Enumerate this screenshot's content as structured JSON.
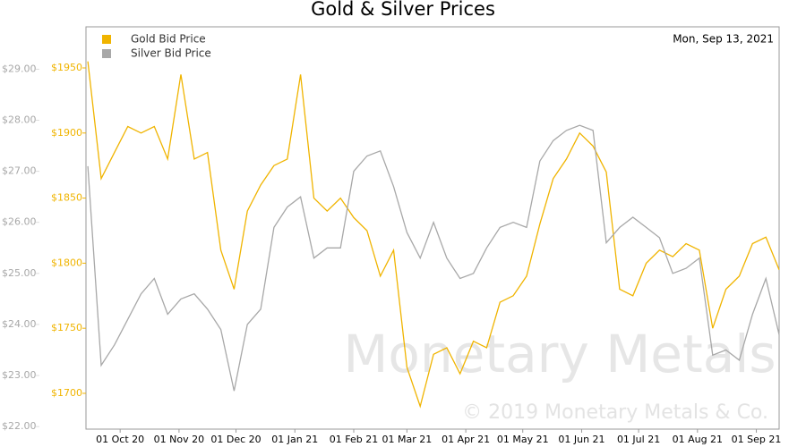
{
  "chart_data": {
    "type": "line",
    "title": "Gold & Silver Prices",
    "date_label": "Mon, Sep 13, 2021",
    "watermark": "Monetary Metals",
    "copyright": "© 2019 Monetary Metals & Co.",
    "legend": "top-left",
    "x": [
      "2020-09-14",
      "2020-09-21",
      "2020-09-28",
      "2020-10-05",
      "2020-10-12",
      "2020-10-19",
      "2020-10-26",
      "2020-11-02",
      "2020-11-09",
      "2020-11-16",
      "2020-11-23",
      "2020-11-30",
      "2020-12-07",
      "2020-12-14",
      "2020-12-21",
      "2020-12-28",
      "2021-01-04",
      "2021-01-11",
      "2021-01-18",
      "2021-01-25",
      "2021-02-01",
      "2021-02-08",
      "2021-02-15",
      "2021-02-22",
      "2021-03-01",
      "2021-03-08",
      "2021-03-15",
      "2021-03-22",
      "2021-03-29",
      "2021-04-05",
      "2021-04-12",
      "2021-04-19",
      "2021-04-26",
      "2021-05-03",
      "2021-05-10",
      "2021-05-17",
      "2021-05-24",
      "2021-05-31",
      "2021-06-07",
      "2021-06-14",
      "2021-06-21",
      "2021-06-28",
      "2021-07-05",
      "2021-07-12",
      "2021-07-19",
      "2021-07-26",
      "2021-08-02",
      "2021-08-09",
      "2021-08-16",
      "2021-08-23",
      "2021-08-30",
      "2021-09-06",
      "2021-09-13"
    ],
    "series": [
      {
        "name": "Gold Bid Price",
        "color": "#f0b400",
        "axis": "y2",
        "values": [
          1955,
          1865,
          1885,
          1905,
          1900,
          1905,
          1880,
          1945,
          1880,
          1885,
          1810,
          1780,
          1840,
          1860,
          1875,
          1880,
          1945,
          1850,
          1840,
          1850,
          1835,
          1825,
          1790,
          1810,
          1720,
          1690,
          1730,
          1735,
          1715,
          1740,
          1735,
          1770,
          1775,
          1790,
          1830,
          1865,
          1880,
          1900,
          1890,
          1870,
          1780,
          1775,
          1800,
          1810,
          1805,
          1815,
          1810,
          1750,
          1780,
          1790,
          1815,
          1820,
          1795
        ]
      },
      {
        "name": "Silver Bid Price",
        "color": "#a8a8a8",
        "values": [
          27.1,
          23.2,
          23.6,
          24.1,
          24.6,
          24.9,
          24.2,
          24.5,
          24.6,
          24.3,
          23.9,
          22.7,
          24.0,
          24.3,
          25.9,
          26.3,
          26.5,
          25.3,
          25.5,
          25.5,
          27.0,
          27.3,
          27.4,
          26.7,
          25.8,
          25.3,
          26.0,
          25.3,
          24.9,
          25.0,
          25.5,
          25.9,
          26.0,
          25.9,
          27.2,
          27.6,
          27.8,
          27.9,
          27.8,
          25.6,
          25.9,
          26.1,
          25.9,
          25.7,
          25.0,
          25.1,
          25.3,
          23.4,
          23.5,
          23.3,
          24.2,
          24.9,
          23.8
        ]
      }
    ],
    "xlim": [
      "2020-09-13",
      "2021-09-13"
    ],
    "xticks": [
      {
        "value": "2020-10-01",
        "label": "01 Oct 20"
      },
      {
        "value": "2020-11-01",
        "label": "01 Nov 20"
      },
      {
        "value": "2020-12-01",
        "label": "01 Dec 20"
      },
      {
        "value": "2021-01-01",
        "label": "01 Jan 21"
      },
      {
        "value": "2021-02-01",
        "label": "01 Feb 21"
      },
      {
        "value": "2021-03-01",
        "label": "01 Mar 21"
      },
      {
        "value": "2021-04-01",
        "label": "01 Apr 21"
      },
      {
        "value": "2021-05-01",
        "label": "01 May 21"
      },
      {
        "value": "2021-06-01",
        "label": "01 Jun 21"
      },
      {
        "value": "2021-07-01",
        "label": "01 Jul 21"
      },
      {
        "value": "2021-08-01",
        "label": "01 Aug 21"
      },
      {
        "value": "2021-09-01",
        "label": "01 Sep 21"
      }
    ],
    "ylim": [
      21.95,
      29.83
    ],
    "yticks": [
      {
        "value": 22,
        "label": "$22.00"
      },
      {
        "value": 23,
        "label": "$23.00"
      },
      {
        "value": 24,
        "label": "$24.00"
      },
      {
        "value": 25,
        "label": "$25.00"
      },
      {
        "value": 26,
        "label": "$26.00"
      },
      {
        "value": 27,
        "label": "$27.00"
      },
      {
        "value": 28,
        "label": "$28.00"
      },
      {
        "value": 29,
        "label": "$29.00"
      }
    ],
    "y2lim": [
      1672.5,
      1981.6
    ],
    "y2ticks": [
      {
        "value": 1700,
        "label": "$1700"
      },
      {
        "value": 1750,
        "label": "$1750"
      },
      {
        "value": 1800,
        "label": "$1800"
      },
      {
        "value": 1850,
        "label": "$1850"
      },
      {
        "value": 1900,
        "label": "$1900"
      },
      {
        "value": 1950,
        "label": "$1950"
      }
    ]
  }
}
